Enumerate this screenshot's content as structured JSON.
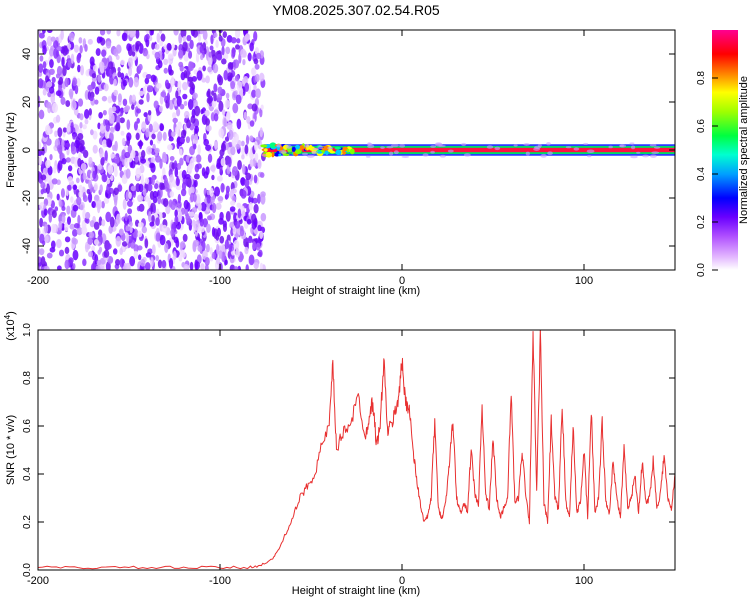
{
  "title": "YM08.2025.307.02.54.R05",
  "chart_data": [
    {
      "type": "heatmap",
      "xlabel": "Height of straight line (km)",
      "ylabel": "Frequency (Hz)",
      "xlim": [
        -200,
        150
      ],
      "ylim": [
        -50,
        50
      ],
      "xticks": [
        "-200",
        "-100",
        "0",
        "100"
      ],
      "xtick_values": [
        -200,
        -100,
        0,
        100
      ],
      "yticks": [
        "40",
        "20",
        "0",
        "-20",
        "-40"
      ],
      "ytick_values": [
        40,
        20,
        0,
        -20,
        -40
      ],
      "colorbar": {
        "label": "Normalized spectral amplitude",
        "range": [
          0,
          1
        ],
        "ticks": [
          "0.0",
          "0.2",
          "0.4",
          "0.6",
          "0.8"
        ],
        "tick_values": [
          0.0,
          0.2,
          0.4,
          0.6,
          0.8
        ],
        "colormap": [
          "#ffffff",
          "#b070ff",
          "#6a00ff",
          "#0000ff",
          "#00c8ff",
          "#00ff60",
          "#80ff00",
          "#ffff00",
          "#ff8000",
          "#ff0000",
          "#ff00b0"
        ]
      },
      "noise_region_x": [
        -200,
        -76
      ],
      "signal_band_frequency": 0,
      "signal_band_half_width": 1.5,
      "signal_start_x": -76
    },
    {
      "type": "line",
      "xlabel": "Height of straight line (km)",
      "ylabel": "SNR (10 * v/v)",
      "y_multiplier": "(x10",
      "y_multiplier_exp": "4",
      "y_multiplier_close": ")",
      "xlim": [
        -200,
        150
      ],
      "ylim": [
        0,
        1.0
      ],
      "xticks": [
        "-200",
        "-100",
        "0",
        "100"
      ],
      "xtick_values": [
        -200,
        -100,
        0,
        100
      ],
      "yticks": [
        "0.0",
        "0.2",
        "0.4",
        "0.6",
        "0.8",
        "1.0"
      ],
      "ytick_values": [
        0.0,
        0.2,
        0.4,
        0.6,
        0.8,
        1.0
      ],
      "line_color": "#e83030",
      "series": [
        {
          "x": [
            -200,
            -180,
            -160,
            -140,
            -120,
            -100,
            -85,
            -78,
            -72,
            -68,
            -64,
            -60,
            -56,
            -52,
            -48,
            -44,
            -40,
            -38,
            -36,
            -32,
            -28,
            -24,
            -20,
            -18,
            -16,
            -14,
            -12,
            -10,
            -8,
            -6,
            -4,
            -2,
            0,
            2,
            4,
            6,
            8,
            10,
            12,
            14,
            16,
            18,
            20,
            22,
            24,
            26,
            28,
            30,
            32,
            34,
            36,
            38,
            40,
            42,
            44,
            46,
            48,
            50,
            52,
            54,
            56,
            58,
            60,
            62,
            64,
            66,
            68,
            70,
            72,
            74,
            76,
            78,
            80,
            82,
            84,
            86,
            88,
            90,
            92,
            94,
            96,
            98,
            100,
            102,
            104,
            106,
            108,
            110,
            112,
            114,
            116,
            118,
            120,
            122,
            124,
            126,
            128,
            130,
            132,
            134,
            136,
            138,
            140,
            142,
            144,
            146,
            148,
            150
          ],
          "values": [
            0.01,
            0.01,
            0.01,
            0.01,
            0.01,
            0.01,
            0.01,
            0.02,
            0.04,
            0.08,
            0.15,
            0.22,
            0.3,
            0.35,
            0.4,
            0.52,
            0.6,
            0.85,
            0.5,
            0.58,
            0.62,
            0.72,
            0.55,
            0.65,
            0.7,
            0.52,
            0.6,
            0.88,
            0.58,
            0.6,
            0.65,
            0.72,
            0.86,
            0.7,
            0.68,
            0.5,
            0.38,
            0.28,
            0.2,
            0.22,
            0.3,
            0.62,
            0.25,
            0.22,
            0.28,
            0.45,
            0.62,
            0.3,
            0.24,
            0.27,
            0.25,
            0.5,
            0.32,
            0.27,
            0.68,
            0.31,
            0.26,
            0.55,
            0.3,
            0.22,
            0.26,
            0.3,
            0.74,
            0.28,
            0.3,
            0.5,
            0.32,
            0.2,
            1.0,
            0.32,
            0.98,
            0.28,
            0.2,
            0.62,
            0.3,
            0.25,
            0.7,
            0.28,
            0.22,
            0.6,
            0.24,
            0.28,
            0.5,
            0.22,
            0.66,
            0.24,
            0.3,
            0.62,
            0.28,
            0.24,
            0.46,
            0.3,
            0.22,
            0.5,
            0.26,
            0.3,
            0.4,
            0.24,
            0.45,
            0.28,
            0.3,
            0.46,
            0.26,
            0.32,
            0.48,
            0.3,
            0.25,
            0.4
          ]
        }
      ]
    }
  ]
}
